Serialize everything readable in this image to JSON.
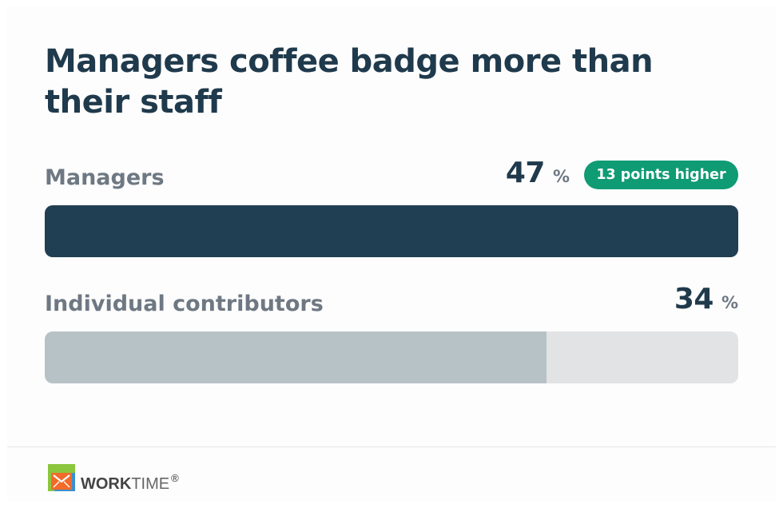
{
  "title": "Managers coffee badge more than their staff",
  "chart_data": {
    "type": "bar",
    "orientation": "horizontal",
    "title": "Managers coffee badge more than their staff",
    "categories": [
      "Managers",
      "Individual contributors"
    ],
    "values": [
      47,
      34
    ],
    "unit": "%",
    "xlim": [
      0,
      47
    ],
    "annotations": [
      {
        "category": "Managers",
        "text": "13 points higher"
      }
    ],
    "colors": {
      "Managers": "#213f52",
      "Individual contributors": "#b7c2c6",
      "track": "#e2e3e5",
      "badge": "#0f9b74"
    }
  },
  "rows": [
    {
      "label": "Managers",
      "value": "47",
      "unit": "%"
    },
    {
      "label": "Individual contributors",
      "value": "34",
      "unit": "%"
    }
  ],
  "badge": {
    "text": "13 points higher"
  },
  "footer": {
    "logo_icon": "worktime-logo-icon",
    "brand_bold": "WORK",
    "brand_light": "TIME",
    "brand_mark": "®"
  }
}
